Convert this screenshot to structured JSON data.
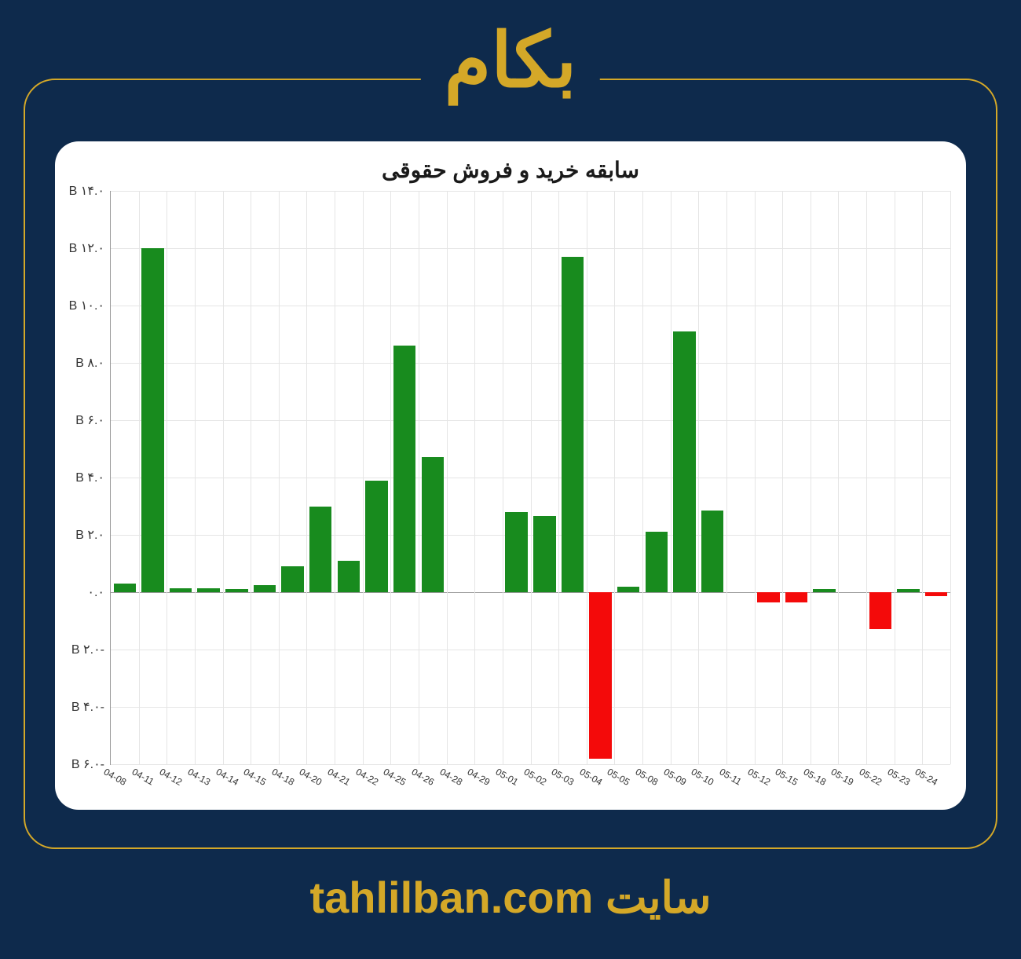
{
  "header": {
    "title": "بکام"
  },
  "chart": {
    "type": "bar",
    "title": "سابقه خرید و فروش حقوقی",
    "background_color": "#ffffff",
    "grid_color": "#e5e5e5",
    "axis_color": "#999999",
    "ylim": [
      -6.0,
      14.0
    ],
    "ytick_step": 2.0,
    "yticks": [
      {
        "value": 14.0,
        "label": "۱۴.۰ B"
      },
      {
        "value": 12.0,
        "label": "۱۲.۰ B"
      },
      {
        "value": 10.0,
        "label": "۱۰.۰ B"
      },
      {
        "value": 8.0,
        "label": "۸.۰ B"
      },
      {
        "value": 6.0,
        "label": "۶.۰ B"
      },
      {
        "value": 4.0,
        "label": "۴.۰ B"
      },
      {
        "value": 2.0,
        "label": "۲.۰ B"
      },
      {
        "value": 0.0,
        "label": "۰.۰"
      },
      {
        "value": -2.0,
        "label": "-۲.۰ B"
      },
      {
        "value": -4.0,
        "label": "-۴.۰ B"
      },
      {
        "value": -6.0,
        "label": "-۶.۰ B"
      }
    ],
    "xlabels": [
      "04-08",
      "04-11",
      "04-12",
      "04-13",
      "04-14",
      "04-15",
      "04-18",
      "04-20",
      "04-21",
      "04-22",
      "04-25",
      "04-26",
      "04-28",
      "04-29",
      "05-01",
      "05-02",
      "05-03",
      "05-04",
      "05-05",
      "05-08",
      "05-09",
      "05-10",
      "05-11",
      "05-12",
      "05-15",
      "05-18",
      "05-19",
      "05-22",
      "05-23",
      "05-24"
    ],
    "values": [
      0.3,
      12.0,
      0.15,
      0.15,
      0.12,
      0.25,
      0.9,
      3.0,
      1.1,
      3.9,
      8.6,
      4.7,
      0.0,
      0.0,
      2.8,
      2.65,
      11.7,
      -5.8,
      0.18,
      2.1,
      9.1,
      2.85,
      0.0,
      -0.35,
      -0.35,
      0.1,
      0.0,
      -1.3,
      0.1,
      -0.15
    ],
    "positive_color": "#188b1e",
    "negative_color": "#f40a0a",
    "bar_width": 0.8,
    "title_fontsize": 28,
    "ylabel_fontsize": 16,
    "xlabel_fontsize": 12,
    "xlabel_rotation": 30
  },
  "footer": {
    "site_label": "سایت",
    "url": "tahlilban.com"
  },
  "frame": {
    "border_color": "#d4a828",
    "page_bg": "#0e2a4c"
  }
}
